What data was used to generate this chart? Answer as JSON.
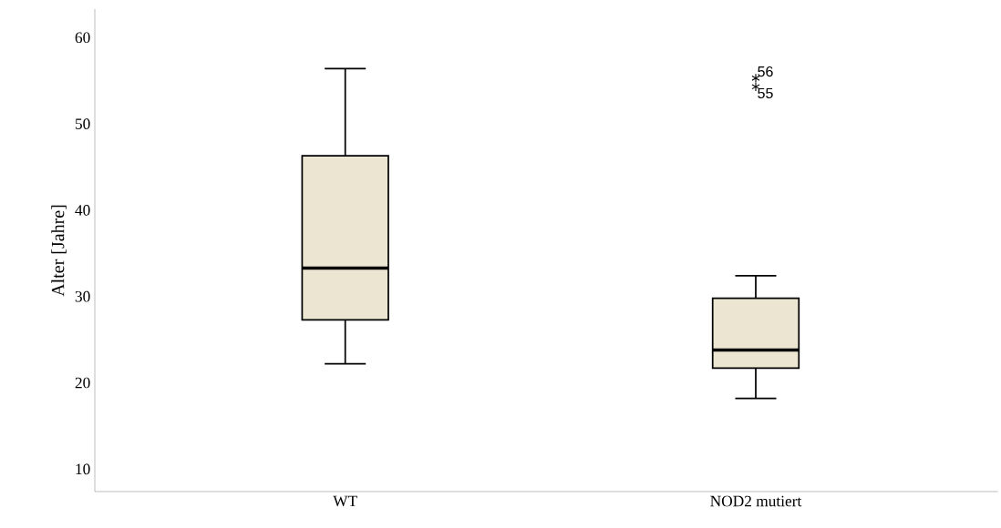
{
  "chart_data": {
    "type": "box",
    "ylabel": "Alter [Jahre]",
    "categories": [
      "WT",
      "NOD2 mutiert"
    ],
    "color": "#ebe5d1",
    "boxes": [
      {
        "low": 22.2,
        "q1": 27.3,
        "median": 33.3,
        "q3": 46.3,
        "high": 56.4
      },
      {
        "low": 18.2,
        "q1": 21.7,
        "median": 23.8,
        "q3": 29.8,
        "high": 32.4,
        "outliers": [
          55.3,
          54.3
        ]
      }
    ],
    "marker": "star",
    "annotations": [
      "56",
      "55"
    ],
    "ylim": [
      7.4,
      63.3
    ],
    "yticks": [
      10,
      20,
      30,
      40,
      50,
      60
    ],
    "grid": false
  }
}
